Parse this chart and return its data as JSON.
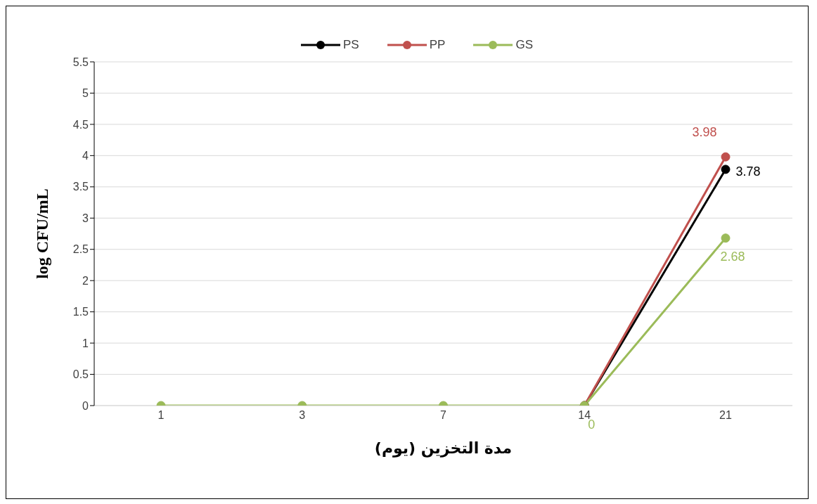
{
  "chart_data": {
    "type": "line",
    "xlabel": "مدة التخزين (يوم)",
    "ylabel": "log CFU/mL",
    "categories": [
      "1",
      "3",
      "7",
      "14",
      "21"
    ],
    "series": [
      {
        "name": "PS",
        "color": "#000000",
        "values": [
          null,
          null,
          null,
          0,
          3.78
        ],
        "value_labels": [
          null,
          null,
          null,
          null,
          "3.78"
        ]
      },
      {
        "name": "PP",
        "color": "#c0504d",
        "values": [
          null,
          null,
          null,
          0,
          3.98
        ],
        "value_labels": [
          null,
          null,
          null,
          null,
          "3.98"
        ]
      },
      {
        "name": "GS",
        "color": "#9bbb59",
        "values": [
          0,
          0,
          0,
          0,
          2.68
        ],
        "value_labels": [
          null,
          null,
          null,
          "0",
          "2.68"
        ]
      }
    ],
    "ylim": [
      0,
      5.5
    ],
    "yticks": [
      0,
      0.5,
      1,
      1.5,
      2,
      2.5,
      3,
      3.5,
      4,
      4.5,
      5,
      5.5
    ],
    "grid": "y",
    "legend": "top",
    "marker": "circle",
    "line_style": "solid"
  }
}
